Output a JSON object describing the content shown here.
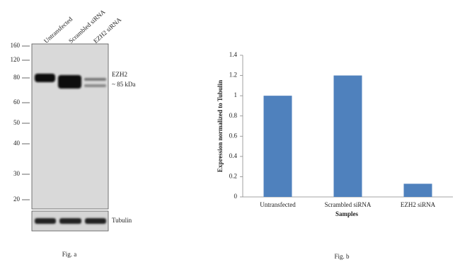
{
  "blot": {
    "lanes": [
      "Untransfected",
      "Scrambled siRNA",
      "EZH2 siRNA"
    ],
    "markers": [
      "160",
      "120",
      "80",
      "60",
      "50",
      "40",
      "30",
      "20"
    ],
    "band_label": "EZH2",
    "band_size": "~ 85 kDa",
    "loading_control": "Tubulin",
    "caption": "Fig. a"
  },
  "chart_data": {
    "type": "bar",
    "categories": [
      "Untransfected",
      "Scrambled siRNA",
      "EZH2 siRNA"
    ],
    "values": [
      1,
      1.2,
      0.13
    ],
    "color": "#4f81bd",
    "ylim": [
      0,
      1.4
    ],
    "yticks": [
      0,
      0.2,
      0.4,
      0.6,
      0.8,
      1,
      1.2,
      1.4
    ],
    "xlabel": "Samples",
    "ylabel": "Expression  normalized to Tubulin",
    "caption": "Fig. b"
  }
}
